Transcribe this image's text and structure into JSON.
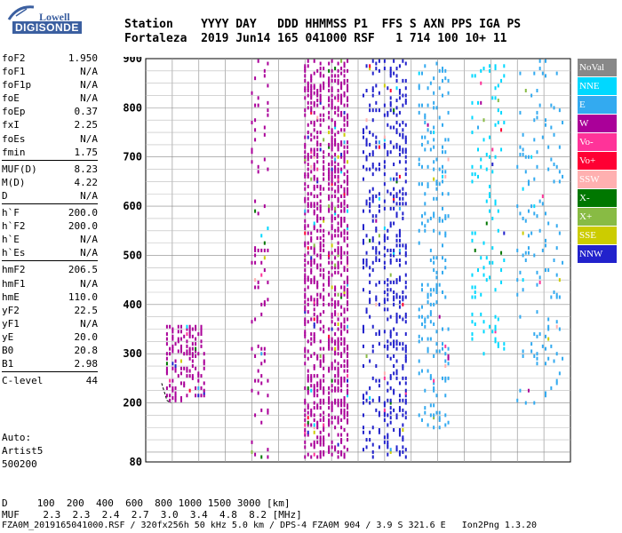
{
  "logo": {
    "line1": "Lowell",
    "line2": "DIGISONDE"
  },
  "header": {
    "line1": "Station    YYYY DAY   DDD HHMMSS P1  FFS S AXN PPS IGA PS",
    "line2": "Fortaleza  2019 Jun14 165 041000 RSF   1 714 100 10+ 11"
  },
  "params": {
    "group1": [
      {
        "name": "foF2",
        "value": "1.950"
      },
      {
        "name": "foF1",
        "value": "N/A"
      },
      {
        "name": "foF1p",
        "value": "N/A"
      },
      {
        "name": "foE",
        "value": "N/A"
      },
      {
        "name": "foEp",
        "value": "0.37"
      },
      {
        "name": "fxI",
        "value": "2.25"
      },
      {
        "name": "foEs",
        "value": "N/A"
      },
      {
        "name": "fmin",
        "value": "1.75"
      }
    ],
    "group2": [
      {
        "name": "MUF(D)",
        "value": "8.23"
      },
      {
        "name": "M(D)",
        "value": "4.22"
      },
      {
        "name": "D",
        "value": "N/A"
      }
    ],
    "group3": [
      {
        "name": "h`F",
        "value": "200.0"
      },
      {
        "name": "h`F2",
        "value": "200.0"
      },
      {
        "name": "h`E",
        "value": "N/A"
      },
      {
        "name": "h`Es",
        "value": "N/A"
      }
    ],
    "group4": [
      {
        "name": "hmF2",
        "value": "206.5"
      },
      {
        "name": "hmF1",
        "value": "N/A"
      },
      {
        "name": "hmE",
        "value": "110.0"
      },
      {
        "name": "yF2",
        "value": "22.5"
      },
      {
        "name": "yF1",
        "value": "N/A"
      },
      {
        "name": "yE",
        "value": "20.0"
      },
      {
        "name": "B0",
        "value": "20.8"
      },
      {
        "name": "B1",
        "value": "2.98"
      }
    ],
    "group5": [
      {
        "name": "C-level",
        "value": "44"
      }
    ]
  },
  "auto": {
    "line1": "Auto:",
    "line2": "Artist5",
    "line3": "500200"
  },
  "bottom_table": {
    "line1": "D     100  200  400  600  800 1000 1500 3000 [km]",
    "line2": "MUF    2.3  2.3  2.4  2.7  3.0  3.4  4.8  8.2 [MHz]"
  },
  "footer": "FZA0M_2019165041000.RSF / 320fx256h 50 kHz 5.0 km / DPS-4 FZA0M 904 / 3.9 S 321.6 E   Ion2Png 1.3.20",
  "legend": [
    {
      "label": "NoVal",
      "color": "#888888"
    },
    {
      "label": "NNE",
      "color": "#00d8ff"
    },
    {
      "label": "E",
      "color": "#33aaf0"
    },
    {
      "label": "W",
      "color": "#aa0099"
    },
    {
      "label": "Vo-",
      "color": "#ff3399"
    },
    {
      "label": "Vo+",
      "color": "#ff0033"
    },
    {
      "label": "SSW",
      "color": "#ffb0b0"
    },
    {
      "label": "X-",
      "color": "#007700"
    },
    {
      "label": "X+",
      "color": "#88bb44"
    },
    {
      "label": "SSE",
      "color": "#cccc00"
    },
    {
      "label": "NNW",
      "color": "#2222cc"
    }
  ],
  "chart_data": {
    "type": "scatter",
    "title": "",
    "xlabel": "",
    "ylabel": "",
    "xlim": [
      1,
      17
    ],
    "ylim": [
      80,
      900
    ],
    "x_ticks": [
      "1",
      "2",
      "3",
      "4",
      "5",
      "6",
      "7",
      "8",
      "9",
      "10",
      "11",
      "12",
      "13",
      "14",
      "15",
      "16",
      "17"
    ],
    "y_ticks": [
      "80",
      "200",
      "300",
      "400",
      "500",
      "600",
      "700",
      "800",
      "900"
    ],
    "grid": true,
    "trace_clusters": [
      {
        "f_min": 1.8,
        "f_max": 3.2,
        "h_min": 205,
        "h_max": 360,
        "density": 0.5,
        "color": "W"
      },
      {
        "f_min": 5.0,
        "f_max": 5.6,
        "h_min": 90,
        "h_max": 900,
        "density": 0.15,
        "color": "W"
      },
      {
        "f_min": 7.0,
        "f_max": 7.7,
        "h_min": 90,
        "h_max": 900,
        "density": 0.7,
        "color": "W"
      },
      {
        "f_min": 7.9,
        "f_max": 8.6,
        "h_min": 90,
        "h_max": 900,
        "density": 0.75,
        "color": "W"
      },
      {
        "f_min": 9.2,
        "f_max": 9.8,
        "h_min": 90,
        "h_max": 900,
        "density": 0.3,
        "color": "NNW"
      },
      {
        "f_min": 10.0,
        "f_max": 10.8,
        "h_min": 90,
        "h_max": 900,
        "density": 0.45,
        "color": "NNW"
      },
      {
        "f_min": 11.3,
        "f_max": 12.4,
        "h_min": 150,
        "h_max": 900,
        "density": 0.25,
        "color": "E"
      },
      {
        "f_min": 13.3,
        "f_max": 14.5,
        "h_min": 300,
        "h_max": 900,
        "density": 0.12,
        "color": "NNE"
      },
      {
        "f_min": 15.0,
        "f_max": 16.7,
        "h_min": 200,
        "h_max": 900,
        "density": 0.12,
        "color": "E"
      }
    ],
    "fit_curve": {
      "x": [
        1.6,
        1.8,
        1.95
      ],
      "y": [
        240,
        205,
        200
      ]
    }
  }
}
